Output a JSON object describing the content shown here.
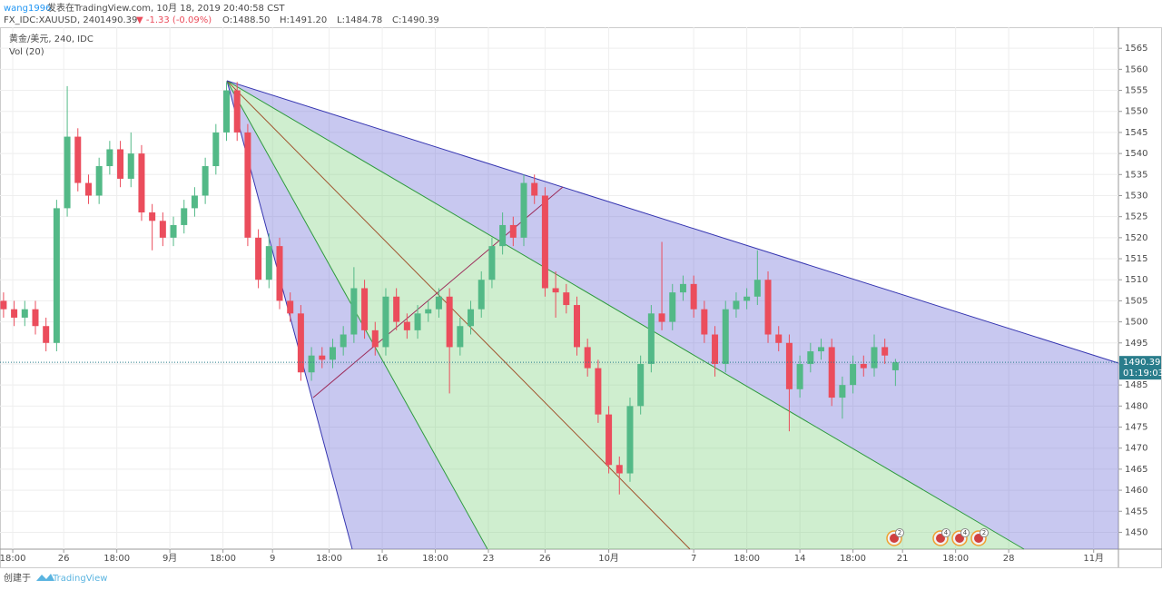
{
  "header": {
    "author": "wang1996",
    "published": "发表在TradingView.com, 10月 18, 2019 20:40:58 CST",
    "symbol": "FX_IDC:XAUUSD, 240",
    "last": "1490.39",
    "change": "▼ -1.33 (-0.09%)",
    "o": "O:1488.50",
    "h": "H:1491.20",
    "l": "L:1484.78",
    "c": "C:1490.39",
    "pane_title": "黄金/美元, 240, IDC",
    "volume_label": "Vol (20)",
    "timer": "01:19:03",
    "footer_prefix": "创建于",
    "footer_brand": "TradingView"
  },
  "chart_data": {
    "type": "candlestick",
    "up_color": "#53b987",
    "down_color": "#eb4d5c",
    "grid": true,
    "xlim": [
      0,
      316
    ],
    "ylim": [
      1446,
      1570
    ],
    "yticks": [
      1450,
      1455,
      1460,
      1465,
      1470,
      1475,
      1480,
      1485,
      1490,
      1495,
      1500,
      1505,
      1510,
      1515,
      1520,
      1525,
      1530,
      1535,
      1540,
      1545,
      1550,
      1555,
      1560,
      1565
    ],
    "xticks": [
      {
        "value": 3.6,
        "label": "18:00"
      },
      {
        "value": 18,
        "label": "26"
      },
      {
        "value": 33,
        "label": "18:00"
      },
      {
        "value": 48,
        "label": "9月"
      },
      {
        "value": 63,
        "label": "18:00"
      },
      {
        "value": 77,
        "label": "9"
      },
      {
        "value": 93,
        "label": "18:00"
      },
      {
        "value": 108,
        "label": "16"
      },
      {
        "value": 123,
        "label": "18:00"
      },
      {
        "value": 138,
        "label": "23"
      },
      {
        "value": 154,
        "label": "26"
      },
      {
        "value": 172,
        "label": "10月"
      },
      {
        "value": 196,
        "label": "7"
      },
      {
        "value": 211,
        "label": "18:00"
      },
      {
        "value": 226,
        "label": "14"
      },
      {
        "value": 241,
        "label": "18:00"
      },
      {
        "value": 255,
        "label": "21"
      },
      {
        "value": 270,
        "label": "18:00"
      },
      {
        "value": 285,
        "label": "28"
      },
      {
        "value": 309,
        "label": "11月"
      }
    ],
    "x": [
      1,
      4,
      7,
      10,
      13,
      16,
      19,
      22,
      25,
      28,
      31,
      34,
      37,
      40,
      43,
      46,
      49,
      52,
      55,
      58,
      61,
      64,
      67,
      70,
      73,
      76,
      79,
      82,
      85,
      88,
      91,
      94,
      97,
      100,
      103,
      106,
      109,
      112,
      115,
      118,
      121,
      124,
      127,
      130,
      133,
      136,
      139,
      142,
      145,
      148,
      151,
      154,
      157,
      160,
      163,
      166,
      169,
      172,
      175,
      178,
      181,
      184,
      187,
      190,
      193,
      196,
      199,
      202,
      205,
      208,
      211,
      214,
      217,
      220,
      223,
      226,
      229,
      232,
      235,
      238,
      241,
      244,
      247,
      250,
      253
    ],
    "open": [
      1505,
      1503,
      1501,
      1503,
      1499,
      1495,
      1527,
      1544,
      1533,
      1530,
      1537,
      1541,
      1534,
      1540,
      1526,
      1524,
      1520,
      1523,
      1527,
      1530,
      1537,
      1545,
      1555,
      1545,
      1520,
      1510,
      1518,
      1505,
      1502,
      1488,
      1492,
      1491,
      1494,
      1497,
      1508,
      1498,
      1494,
      1506,
      1500,
      1498,
      1502,
      1503,
      1506,
      1494,
      1499,
      1503,
      1510,
      1518,
      1523,
      1520,
      1533,
      1530,
      1508,
      1507,
      1504,
      1494,
      1489,
      1478,
      1466,
      1464,
      1480,
      1490,
      1502,
      1500,
      1507,
      1509,
      1503,
      1497,
      1490,
      1503,
      1505,
      1506,
      1510,
      1497,
      1495,
      1484,
      1490,
      1493,
      1494,
      1482,
      1485,
      1490,
      1489,
      1494,
      1488.5
    ],
    "high": [
      1507,
      1505,
      1505,
      1505,
      1501,
      1529,
      1556,
      1546,
      1535,
      1539,
      1543,
      1543,
      1545,
      1542,
      1528,
      1526,
      1525,
      1529,
      1532,
      1539,
      1547,
      1557,
      1557,
      1547,
      1522,
      1521,
      1520,
      1507,
      1504,
      1494,
      1494,
      1496,
      1499,
      1513,
      1510,
      1500,
      1508,
      1508,
      1502,
      1504,
      1505,
      1508,
      1508,
      1501,
      1505,
      1512,
      1520,
      1526,
      1525,
      1535,
      1535,
      1532,
      1512,
      1509,
      1506,
      1496,
      1491,
      1480,
      1468,
      1482,
      1492,
      1504,
      1519,
      1509,
      1511,
      1511,
      1505,
      1499,
      1505,
      1507,
      1508,
      1517,
      1512,
      1499,
      1497,
      1492,
      1495,
      1496,
      1496,
      1487,
      1492,
      1492,
      1497,
      1496,
      1491.2
    ],
    "low": [
      1501,
      1499,
      1499,
      1497,
      1493,
      1493,
      1525,
      1531,
      1528,
      1528,
      1535,
      1532,
      1532,
      1524,
      1517,
      1518,
      1518,
      1521,
      1525,
      1528,
      1535,
      1543,
      1543,
      1518,
      1508,
      1508,
      1503,
      1500,
      1486,
      1486,
      1489,
      1489,
      1492,
      1495,
      1496,
      1492,
      1492,
      1498,
      1496,
      1496,
      1500,
      1501,
      1483,
      1492,
      1497,
      1501,
      1508,
      1516,
      1518,
      1518,
      1528,
      1506,
      1501,
      1502,
      1492,
      1487,
      1476,
      1464,
      1459,
      1462,
      1478,
      1488,
      1498,
      1498,
      1505,
      1501,
      1495,
      1487,
      1488,
      1501,
      1503,
      1504,
      1495,
      1493,
      1474,
      1482,
      1488,
      1491,
      1480,
      1477,
      1483,
      1487,
      1487,
      1490,
      1484.78
    ],
    "close": [
      1503,
      1501,
      1503,
      1499,
      1495,
      1527,
      1544,
      1533,
      1530,
      1537,
      1541,
      1534,
      1540,
      1526,
      1524,
      1520,
      1523,
      1527,
      1530,
      1537,
      1545,
      1555,
      1545,
      1520,
      1510,
      1518,
      1505,
      1502,
      1488,
      1492,
      1491,
      1494,
      1497,
      1508,
      1498,
      1494,
      1506,
      1500,
      1498,
      1502,
      1503,
      1506,
      1494,
      1499,
      1503,
      1510,
      1518,
      1523,
      1520,
      1533,
      1530,
      1508,
      1507,
      1504,
      1494,
      1489,
      1478,
      1466,
      1464,
      1480,
      1490,
      1502,
      1500,
      1507,
      1509,
      1503,
      1497,
      1490,
      1503,
      1505,
      1506,
      1510,
      1497,
      1495,
      1484,
      1490,
      1493,
      1494,
      1482,
      1485,
      1490,
      1489,
      1494,
      1492,
      1490.39
    ],
    "event_counts": [
      2,
      4,
      4,
      2
    ]
  }
}
